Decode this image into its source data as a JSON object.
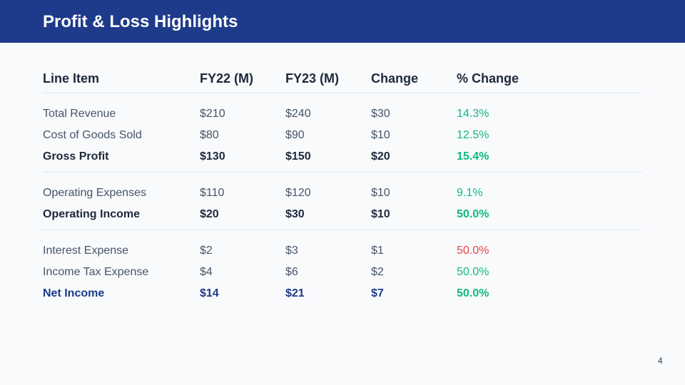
{
  "slide": {
    "title": "Profit & Loss Highlights",
    "page_number": "4"
  },
  "colors": {
    "banner": "#1e3a8a",
    "positive": "#10b981",
    "negative": "#ef4444",
    "net": "#1e3a8a"
  },
  "table": {
    "headers": [
      "Line Item",
      "FY22 (M)",
      "FY23 (M)",
      "Change",
      "% Change"
    ],
    "groups": [
      [
        {
          "style": "normal",
          "pct_color": "positive",
          "cells": [
            "Total Revenue",
            "$210",
            "$240",
            "$30",
            "14.3%"
          ]
        },
        {
          "style": "normal",
          "pct_color": "positive",
          "cells": [
            "Cost of Goods Sold",
            "$80",
            "$90",
            "$10",
            "12.5%"
          ]
        },
        {
          "style": "bold",
          "pct_color": "positive",
          "cells": [
            "Gross Profit",
            "$130",
            "$150",
            "$20",
            "15.4%"
          ]
        }
      ],
      [
        {
          "style": "normal",
          "pct_color": "positive",
          "cells": [
            "Operating Expenses",
            "$110",
            "$120",
            "$10",
            "9.1%"
          ]
        },
        {
          "style": "bold",
          "pct_color": "positive",
          "cells": [
            "Operating Income",
            "$20",
            "$30",
            "$10",
            "50.0%"
          ]
        }
      ],
      [
        {
          "style": "normal",
          "pct_color": "negative",
          "cells": [
            "Interest Expense",
            "$2",
            "$3",
            "$1",
            "50.0%"
          ]
        },
        {
          "style": "normal",
          "pct_color": "positive",
          "cells": [
            "Income Tax Expense",
            "$4",
            "$6",
            "$2",
            "50.0%"
          ]
        },
        {
          "style": "net",
          "pct_color": "positive",
          "cells": [
            "Net Income",
            "$14",
            "$21",
            "$7",
            "50.0%"
          ]
        }
      ]
    ]
  }
}
